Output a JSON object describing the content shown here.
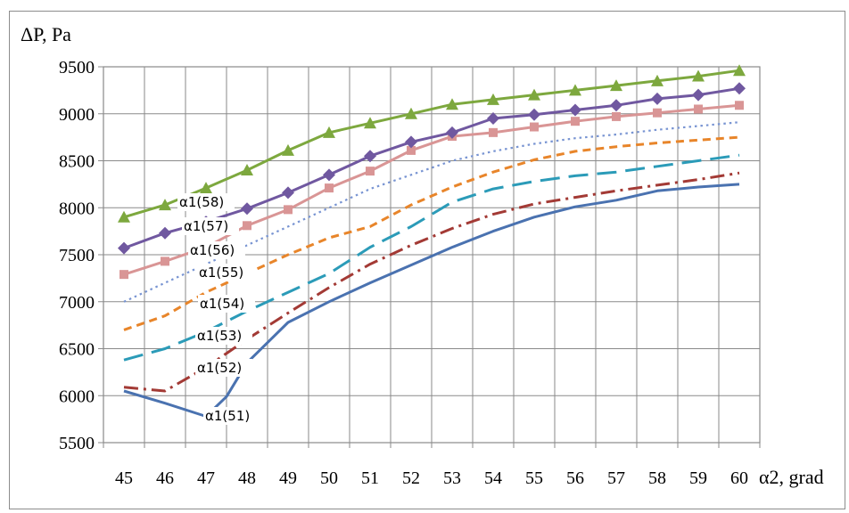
{
  "chart_data": {
    "type": "line",
    "ylabel": "ΔP, Pa",
    "xlabel": "α2,  grad",
    "x": [
      45,
      46,
      47,
      48,
      49,
      50,
      51,
      52,
      53,
      54,
      55,
      56,
      57,
      58,
      59,
      60
    ],
    "ylim": [
      5500,
      9500
    ],
    "yticks": [
      5500,
      6000,
      6500,
      7000,
      7500,
      8000,
      8500,
      9000,
      9500
    ],
    "grid": true,
    "series": [
      {
        "name": "α1(51)",
        "color": "#4a72b0",
        "dash": "solid",
        "marker": "none",
        "points": [
          [
            45,
            6050
          ],
          [
            46,
            5920
          ],
          [
            47,
            5780
          ],
          [
            47.5,
            5990
          ],
          [
            48,
            6350
          ],
          [
            49,
            6780
          ],
          [
            50,
            7000
          ],
          [
            51,
            7200
          ],
          [
            52,
            7390
          ],
          [
            53,
            7580
          ],
          [
            54,
            7750
          ],
          [
            55,
            7900
          ],
          [
            56,
            8010
          ],
          [
            57,
            8080
          ],
          [
            58,
            8180
          ],
          [
            59,
            8220
          ],
          [
            60,
            8250
          ]
        ]
      },
      {
        "name": "α1(52)",
        "color": "#a33a35",
        "dash": "dashdot",
        "marker": "none",
        "points": [
          [
            45,
            6090
          ],
          [
            46,
            6050
          ],
          [
            47,
            6300
          ],
          [
            48,
            6600
          ],
          [
            49,
            6880
          ],
          [
            50,
            7150
          ],
          [
            51,
            7400
          ],
          [
            52,
            7600
          ],
          [
            53,
            7780
          ],
          [
            54,
            7930
          ],
          [
            55,
            8040
          ],
          [
            56,
            8110
          ],
          [
            57,
            8180
          ],
          [
            58,
            8240
          ],
          [
            59,
            8300
          ],
          [
            60,
            8370
          ]
        ]
      },
      {
        "name": "α1(53)",
        "color": "#2b9bb8",
        "dash": "longdash",
        "marker": "none",
        "points": [
          [
            45,
            6380
          ],
          [
            46,
            6500
          ],
          [
            47,
            6680
          ],
          [
            48,
            6900
          ],
          [
            49,
            7100
          ],
          [
            50,
            7300
          ],
          [
            51,
            7580
          ],
          [
            52,
            7800
          ],
          [
            53,
            8060
          ],
          [
            54,
            8200
          ],
          [
            55,
            8280
          ],
          [
            56,
            8340
          ],
          [
            57,
            8380
          ],
          [
            58,
            8440
          ],
          [
            59,
            8500
          ],
          [
            60,
            8560
          ]
        ]
      },
      {
        "name": "α1(54)",
        "color": "#e8852a",
        "dash": "dash",
        "marker": "none",
        "points": [
          [
            45,
            6700
          ],
          [
            46,
            6850
          ],
          [
            47,
            7100
          ],
          [
            48,
            7300
          ],
          [
            49,
            7500
          ],
          [
            50,
            7680
          ],
          [
            51,
            7800
          ],
          [
            52,
            8030
          ],
          [
            53,
            8220
          ],
          [
            54,
            8380
          ],
          [
            55,
            8510
          ],
          [
            56,
            8600
          ],
          [
            57,
            8650
          ],
          [
            58,
            8690
          ],
          [
            59,
            8720
          ],
          [
            60,
            8750
          ]
        ]
      },
      {
        "name": "α1(55)",
        "color": "#7894d2",
        "dash": "dot",
        "marker": "none",
        "points": [
          [
            45,
            7000
          ],
          [
            46,
            7200
          ],
          [
            47,
            7400
          ],
          [
            48,
            7600
          ],
          [
            49,
            7800
          ],
          [
            50,
            8000
          ],
          [
            51,
            8200
          ],
          [
            52,
            8350
          ],
          [
            53,
            8500
          ],
          [
            54,
            8600
          ],
          [
            55,
            8680
          ],
          [
            56,
            8740
          ],
          [
            57,
            8780
          ],
          [
            58,
            8830
          ],
          [
            59,
            8870
          ],
          [
            60,
            8910
          ]
        ]
      },
      {
        "name": "α1(56)",
        "color": "#d99595",
        "dash": "solid",
        "marker": "square",
        "points": [
          [
            45,
            7290
          ],
          [
            46,
            7430
          ],
          [
            47,
            7580
          ],
          [
            48,
            7810
          ],
          [
            49,
            7980
          ],
          [
            50,
            8210
          ],
          [
            51,
            8390
          ],
          [
            52,
            8610
          ],
          [
            53,
            8760
          ],
          [
            54,
            8800
          ],
          [
            55,
            8860
          ],
          [
            56,
            8920
          ],
          [
            57,
            8970
          ],
          [
            58,
            9010
          ],
          [
            59,
            9050
          ],
          [
            60,
            9090
          ]
        ]
      },
      {
        "name": "α1(57)",
        "color": "#7058a0",
        "dash": "solid",
        "marker": "diamond",
        "points": [
          [
            45,
            7570
          ],
          [
            46,
            7730
          ],
          [
            47,
            7850
          ],
          [
            48,
            7990
          ],
          [
            49,
            8160
          ],
          [
            50,
            8350
          ],
          [
            51,
            8550
          ],
          [
            52,
            8700
          ],
          [
            53,
            8800
          ],
          [
            54,
            8950
          ],
          [
            55,
            8990
          ],
          [
            56,
            9040
          ],
          [
            57,
            9090
          ],
          [
            58,
            9160
          ],
          [
            59,
            9200
          ],
          [
            60,
            9270
          ]
        ]
      },
      {
        "name": "α1(58)",
        "color": "#7da83e",
        "dash": "solid",
        "marker": "triangle",
        "points": [
          [
            45,
            7900
          ],
          [
            46,
            8030
          ],
          [
            47,
            8210
          ],
          [
            48,
            8400
          ],
          [
            49,
            8610
          ],
          [
            50,
            8800
          ],
          [
            51,
            8900
          ],
          [
            52,
            9000
          ],
          [
            53,
            9100
          ],
          [
            54,
            9150
          ],
          [
            55,
            9200
          ],
          [
            56,
            9250
          ],
          [
            57,
            9300
          ],
          [
            58,
            9350
          ],
          [
            59,
            9400
          ],
          [
            60,
            9460
          ]
        ]
      }
    ]
  }
}
